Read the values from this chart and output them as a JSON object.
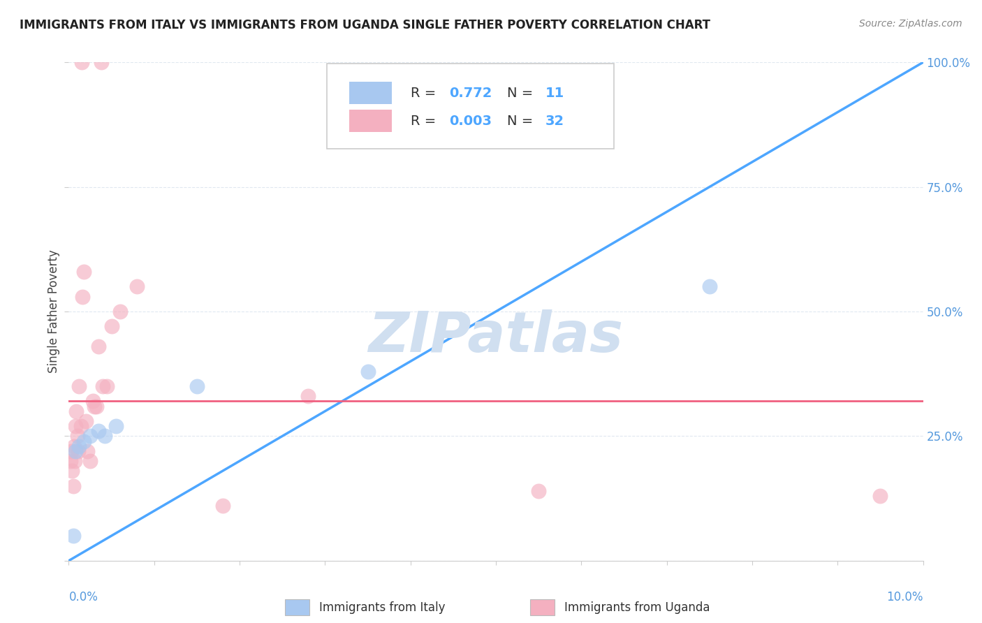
{
  "title": "IMMIGRANTS FROM ITALY VS IMMIGRANTS FROM UGANDA SINGLE FATHER POVERTY CORRELATION CHART",
  "source": "Source: ZipAtlas.com",
  "ylabel": "Single Father Poverty",
  "xlim": [
    0.0,
    10.0
  ],
  "ylim": [
    0.0,
    100.0
  ],
  "italy_R": 0.772,
  "italy_N": 11,
  "uganda_R": 0.003,
  "uganda_N": 32,
  "italy_color": "#a8c8f0",
  "uganda_color": "#f4b0c0",
  "italy_line_color": "#4da6ff",
  "uganda_line_color": "#f06080",
  "ref_line_color": "#c0c0c0",
  "watermark": "ZIPatlas",
  "watermark_color": "#d0dff0",
  "legend_label_italy": "Immigrants from Italy",
  "legend_label_uganda": "Immigrants from Uganda",
  "italy_x": [
    0.05,
    0.08,
    0.12,
    0.18,
    0.25,
    0.35,
    0.42,
    0.55,
    1.5,
    3.5,
    7.5
  ],
  "italy_y": [
    5,
    22,
    23,
    24,
    25,
    26,
    25,
    27,
    35,
    38,
    55
  ],
  "uganda_x": [
    0.02,
    0.03,
    0.04,
    0.05,
    0.06,
    0.07,
    0.08,
    0.09,
    0.1,
    0.11,
    0.12,
    0.14,
    0.16,
    0.18,
    0.2,
    0.22,
    0.25,
    0.28,
    0.3,
    0.32,
    0.35,
    0.4,
    0.45,
    0.5,
    0.6,
    0.8,
    1.8,
    2.8,
    5.5,
    9.5,
    0.15,
    0.38
  ],
  "uganda_y": [
    20,
    22,
    18,
    15,
    23,
    20,
    27,
    30,
    25,
    22,
    35,
    27,
    53,
    58,
    28,
    22,
    20,
    32,
    31,
    31,
    43,
    35,
    35,
    47,
    50,
    55,
    11,
    33,
    14,
    13,
    100,
    100
  ],
  "italy_line_x0": 0.0,
  "italy_line_y0": 0.0,
  "italy_line_x1": 10.0,
  "italy_line_y1": 100.0,
  "uganda_line_y": 32,
  "background_color": "#ffffff",
  "grid_color": "#e8e8e8",
  "grid_color2": "#e0e8f0"
}
